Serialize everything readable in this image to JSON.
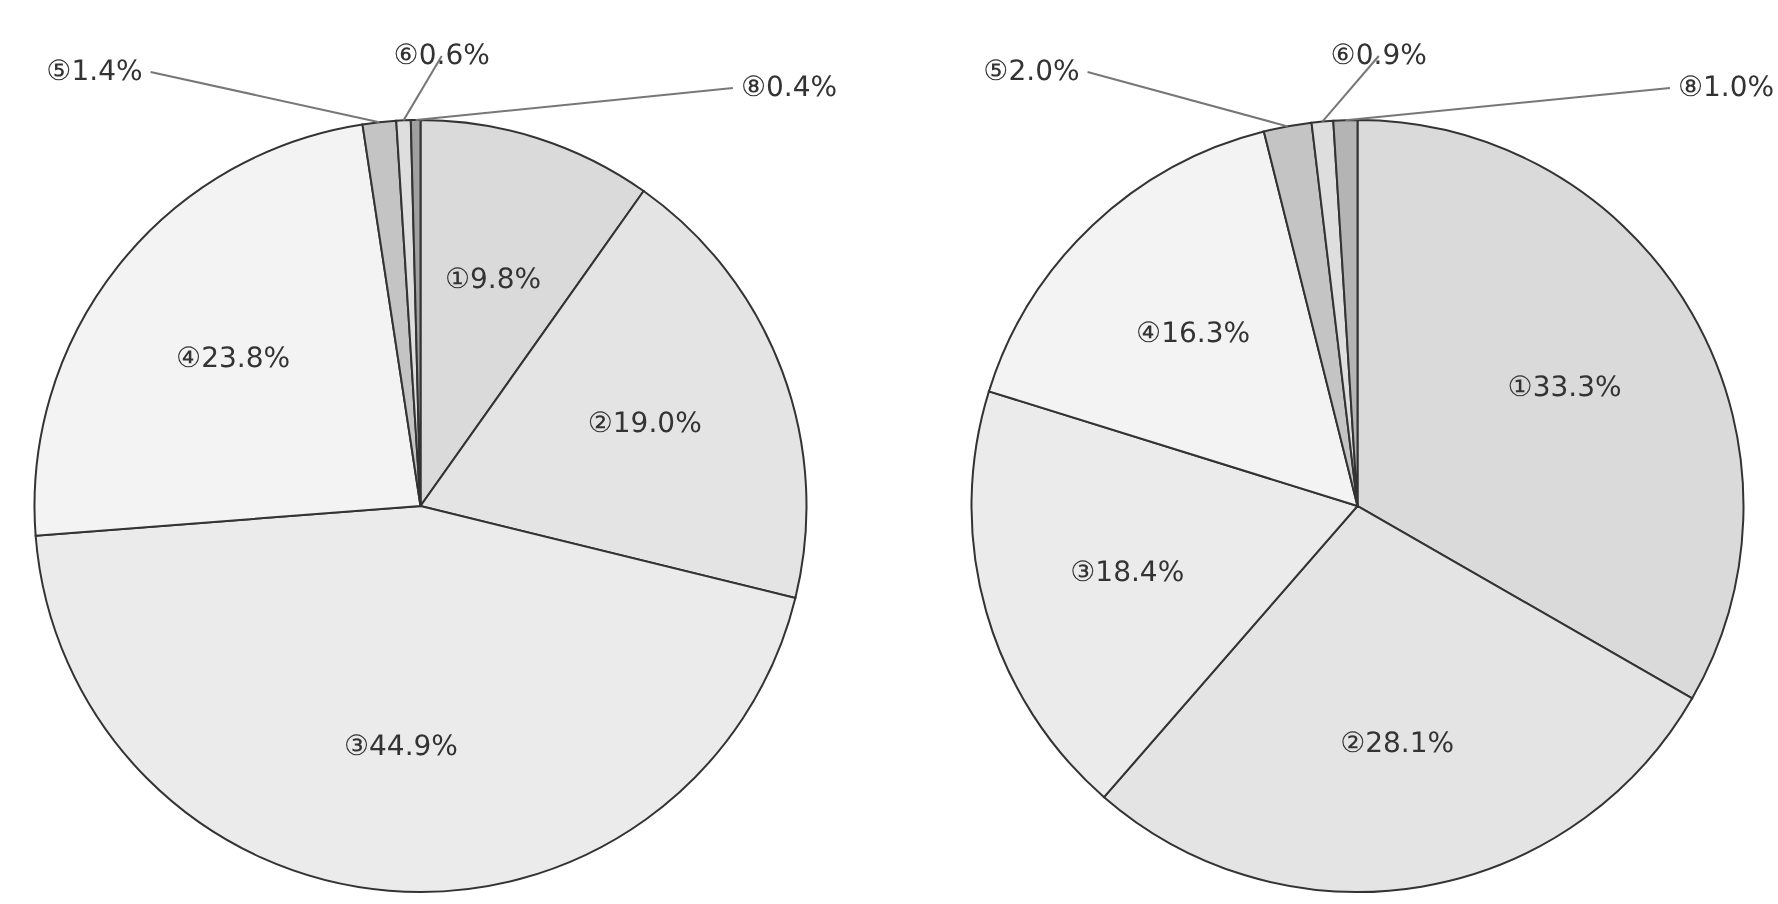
{
  "chart_data": [
    {
      "type": "pie",
      "categories": [
        "①",
        "②",
        "③",
        "④",
        "⑤",
        "⑥",
        "⑧"
      ],
      "values": [
        9.8,
        19.0,
        44.9,
        23.8,
        1.4,
        0.6,
        0.4
      ],
      "value_labels": [
        "9.8%",
        "19.0%",
        "44.9%",
        "23.8%",
        "1.4%",
        "0.6%",
        "0.4%"
      ],
      "colors": [
        "#dadada",
        "#e4e4e4",
        "#ebebeb",
        "#f3f3f3",
        "#c4c4c4",
        "#dedede",
        "#a0a0a0"
      ]
    },
    {
      "type": "pie",
      "categories": [
        "①",
        "②",
        "③",
        "④",
        "⑤",
        "⑥",
        "⑧"
      ],
      "values": [
        33.3,
        28.1,
        18.4,
        16.3,
        2.0,
        0.9,
        1.0
      ],
      "value_labels": [
        "33.3%",
        "28.1%",
        "18.4%",
        "16.3%",
        "2.0%",
        "0.9%",
        "1.0%"
      ],
      "colors": [
        "#dadada",
        "#e4e4e4",
        "#ebebeb",
        "#f3f3f3",
        "#c4c4c4",
        "#dedede",
        "#b4b4b4"
      ]
    }
  ]
}
